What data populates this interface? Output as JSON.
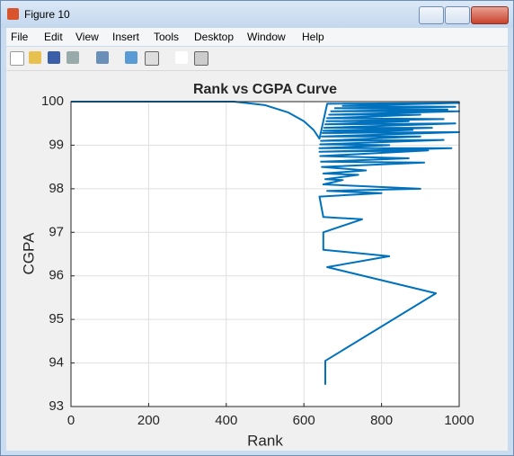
{
  "window": {
    "title": "Figure 10",
    "menu": [
      "File",
      "Edit",
      "View",
      "Insert",
      "Tools",
      "Desktop",
      "Window",
      "Help"
    ]
  },
  "chart_data": {
    "type": "line",
    "title": "Rank vs CGPA Curve",
    "x_label": "Rank",
    "y_label": "CGPA",
    "color": "#0072bd",
    "grid": true,
    "xlim": [
      0,
      1000
    ],
    "xticks": [
      0,
      200,
      400,
      600,
      800,
      1000
    ],
    "ylim": [
      93,
      100
    ],
    "yticks": [
      93,
      94,
      95,
      96,
      97,
      98,
      99,
      100
    ],
    "x": [
      0,
      420,
      500,
      560,
      600,
      625,
      640,
      660,
      1000,
      700,
      990,
      680,
      970,
      670,
      1000,
      665,
      900,
      660,
      960,
      658,
      870,
      655,
      990,
      652,
      930,
      650,
      880,
      648,
      1000,
      646,
      900,
      644,
      960,
      642,
      820,
      640,
      980,
      640,
      920,
      642,
      870,
      644,
      910,
      646,
      760,
      650,
      740,
      655,
      700,
      650,
      900,
      660,
      800,
      640,
      650,
      750,
      650,
      650,
      820,
      660,
      940,
      655,
      655
    ],
    "values": [
      100,
      100,
      99.92,
      99.75,
      99.55,
      99.35,
      99.15,
      99.95,
      99.97,
      99.9,
      99.88,
      99.85,
      99.82,
      99.78,
      99.78,
      99.7,
      99.7,
      99.62,
      99.6,
      99.55,
      99.55,
      99.48,
      99.5,
      99.4,
      99.4,
      99.33,
      99.35,
      99.28,
      99.3,
      99.2,
      99.2,
      99.1,
      99.12,
      99.02,
      99.0,
      98.93,
      98.93,
      98.85,
      98.88,
      98.75,
      98.7,
      98.62,
      98.6,
      98.5,
      98.42,
      98.35,
      98.32,
      98.22,
      98.2,
      98.1,
      98.0,
      97.95,
      97.9,
      97.82,
      97.35,
      97.3,
      97.0,
      96.6,
      96.45,
      96.2,
      95.6,
      94.05,
      93.5
    ]
  }
}
